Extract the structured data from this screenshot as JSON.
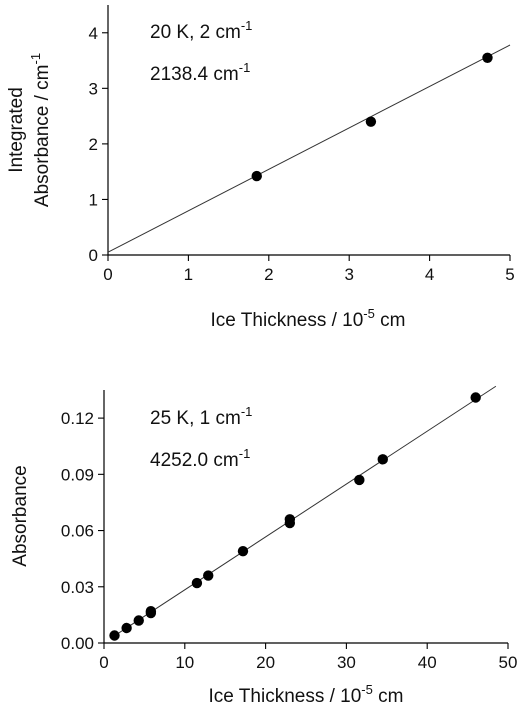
{
  "chart_data": [
    {
      "type": "scatter",
      "xlabel": "Ice Thickness / 10",
      "xlabel_exp": "-5",
      "xlabel_tail": " cm",
      "ylabel_line1": "Integrated",
      "ylabel_line2": "Absorbance / cm",
      "ylabel_exp": "-1",
      "xlim": [
        0,
        5
      ],
      "ylim": [
        0,
        4.5
      ],
      "xticks": [
        0,
        1,
        2,
        3,
        4,
        5
      ],
      "yticks": [
        0,
        1,
        2,
        3,
        4
      ],
      "xticklabels": [
        "0",
        "1",
        "2",
        "3",
        "4",
        "5"
      ],
      "yticklabels": [
        "0",
        "1",
        "2",
        "3",
        "4"
      ],
      "annotation_line1": "20 K, 2 cm",
      "annotation_line1_exp": "-1",
      "annotation_line2": "2138.4 cm",
      "annotation_line2_exp": "-1",
      "points": {
        "x": [
          1.85,
          3.27,
          4.72
        ],
        "y": [
          1.42,
          2.4,
          3.55
        ]
      },
      "fit_line": {
        "x": [
          0,
          5
        ],
        "y": [
          0.05,
          3.78
        ]
      },
      "grid": false
    },
    {
      "type": "scatter",
      "xlabel": "Ice Thickness / 10",
      "xlabel_exp": "-5",
      "xlabel_tail": " cm",
      "ylabel": "Absorbance",
      "xlim": [
        0,
        50
      ],
      "ylim": [
        0,
        0.135
      ],
      "xticks": [
        0,
        10,
        20,
        30,
        40,
        50
      ],
      "yticks": [
        0,
        0.03,
        0.06,
        0.09,
        0.12
      ],
      "xticklabels": [
        "0",
        "10",
        "20",
        "30",
        "40",
        "50"
      ],
      "yticklabels": [
        "0.00",
        "0.03",
        "0.06",
        "0.09",
        "0.12"
      ],
      "annotation_line1": "25 K, 1 cm",
      "annotation_line1_exp": "-1",
      "annotation_line2": "4252.0 cm",
      "annotation_line2_exp": "-1",
      "points": {
        "x": [
          1.3,
          2.8,
          4.3,
          5.8,
          5.8,
          11.5,
          12.9,
          17.2,
          23.0,
          23.0,
          31.6,
          34.5,
          46.0
        ],
        "y": [
          0.004,
          0.008,
          0.012,
          0.016,
          0.017,
          0.032,
          0.036,
          0.049,
          0.064,
          0.066,
          0.087,
          0.098,
          0.131
        ]
      },
      "fit_line": {
        "x": [
          1.0,
          48.5
        ],
        "y": [
          0.003,
          0.137
        ]
      },
      "grid": false
    }
  ]
}
